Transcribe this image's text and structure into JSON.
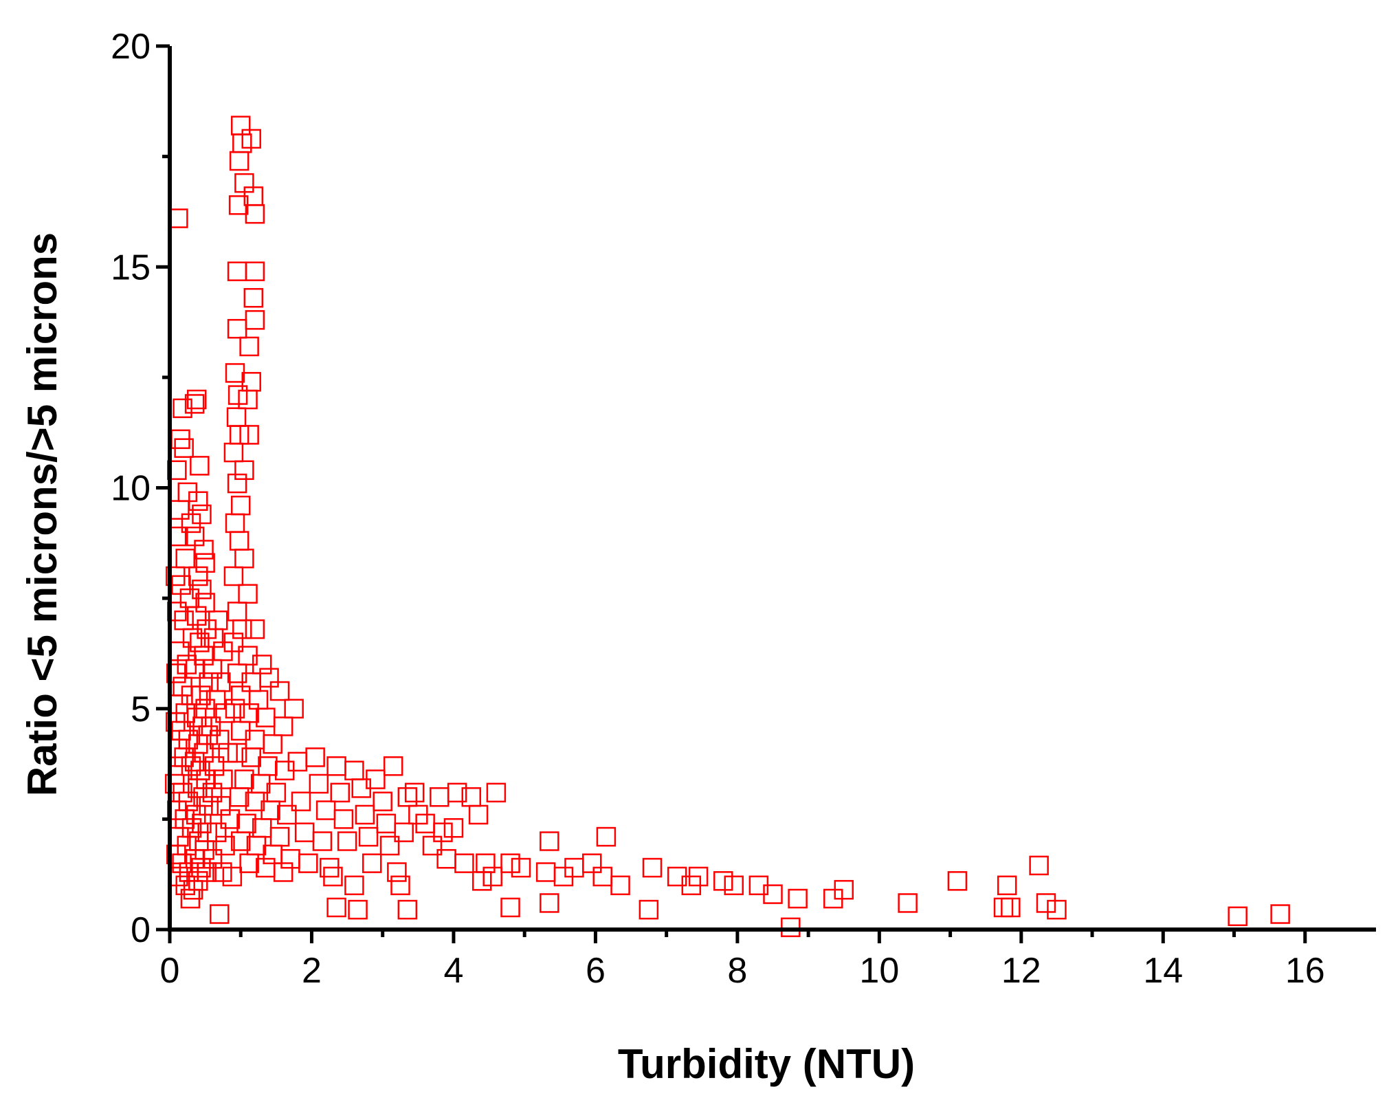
{
  "chart_data": {
    "type": "scatter",
    "xlabel": "Turbidity (NTU)",
    "ylabel": "Ratio <5 microns/>5 microns",
    "xlim": [
      0,
      17
    ],
    "ylim": [
      0,
      20
    ],
    "xticks": [
      0,
      2,
      4,
      6,
      8,
      10,
      12,
      14,
      16
    ],
    "yticks": [
      0,
      5,
      10,
      15,
      20
    ],
    "xtick_labels": [
      "0",
      "2",
      "4",
      "6",
      "8",
      "10",
      "12",
      "14",
      "16"
    ],
    "ytick_labels": [
      "0",
      "5",
      "10",
      "15",
      "20"
    ],
    "grid": false,
    "marker": "open-square",
    "marker_color": "#ff0000",
    "series": [
      {
        "points": [
          [
            0.12,
            16.1
          ],
          [
            0.18,
            11.8
          ],
          [
            0.15,
            11.1
          ],
          [
            0.2,
            10.9
          ],
          [
            0.1,
            10.4
          ],
          [
            0.14,
            9.5
          ],
          [
            0.25,
            9.9
          ],
          [
            0.3,
            9.2
          ],
          [
            0.12,
            8.9
          ],
          [
            0.22,
            8.4
          ],
          [
            0.08,
            8.0
          ],
          [
            0.16,
            7.8
          ],
          [
            0.28,
            7.5
          ],
          [
            0.1,
            7.2
          ],
          [
            0.2,
            7.0
          ],
          [
            0.32,
            6.6
          ],
          [
            0.14,
            6.3
          ],
          [
            0.24,
            6.0
          ],
          [
            0.09,
            5.8
          ],
          [
            0.18,
            5.5
          ],
          [
            0.3,
            5.3
          ],
          [
            0.12,
            5.1
          ],
          [
            0.22,
            4.9
          ],
          [
            0.08,
            4.7
          ],
          [
            0.16,
            4.5
          ],
          [
            0.26,
            4.3
          ],
          [
            0.11,
            4.1
          ],
          [
            0.2,
            3.9
          ],
          [
            0.3,
            3.7
          ],
          [
            0.14,
            3.5
          ],
          [
            0.07,
            3.3
          ],
          [
            0.18,
            3.1
          ],
          [
            0.26,
            2.9
          ],
          [
            0.1,
            2.7
          ],
          [
            0.21,
            2.5
          ],
          [
            0.31,
            2.3
          ],
          [
            0.13,
            2.1
          ],
          [
            0.24,
            1.9
          ],
          [
            0.09,
            1.7
          ],
          [
            0.17,
            1.5
          ],
          [
            0.27,
            1.3
          ],
          [
            0.12,
            1.2
          ],
          [
            0.22,
            1.0
          ],
          [
            0.33,
            0.9
          ],
          [
            0.29,
            0.7
          ],
          [
            0.35,
            11.9
          ],
          [
            0.38,
            12.0
          ],
          [
            0.42,
            10.5
          ],
          [
            0.4,
            9.7
          ],
          [
            0.45,
            9.4
          ],
          [
            0.35,
            8.9
          ],
          [
            0.48,
            8.6
          ],
          [
            0.5,
            8.3
          ],
          [
            0.4,
            8.0
          ],
          [
            0.45,
            7.7
          ],
          [
            0.5,
            7.4
          ],
          [
            0.38,
            7.1
          ],
          [
            0.52,
            6.8
          ],
          [
            0.42,
            6.5
          ],
          [
            0.48,
            6.2
          ],
          [
            0.36,
            5.9
          ],
          [
            0.55,
            5.6
          ],
          [
            0.44,
            5.3
          ],
          [
            0.5,
            5.0
          ],
          [
            0.38,
            4.8
          ],
          [
            0.46,
            4.6
          ],
          [
            0.54,
            4.4
          ],
          [
            0.4,
            4.2
          ],
          [
            0.48,
            4.0
          ],
          [
            0.35,
            3.8
          ],
          [
            0.43,
            3.6
          ],
          [
            0.51,
            3.4
          ],
          [
            0.39,
            3.2
          ],
          [
            0.47,
            3.0
          ],
          [
            0.55,
            2.8
          ],
          [
            0.37,
            2.6
          ],
          [
            0.45,
            2.4
          ],
          [
            0.53,
            2.2
          ],
          [
            0.41,
            2.0
          ],
          [
            0.49,
            1.8
          ],
          [
            0.36,
            1.6
          ],
          [
            0.44,
            1.4
          ],
          [
            0.52,
            1.3
          ],
          [
            0.4,
            1.1
          ],
          [
            0.7,
            0.35
          ],
          [
            0.68,
            7.0
          ],
          [
            0.62,
            6.6
          ],
          [
            0.75,
            6.3
          ],
          [
            0.6,
            5.9
          ],
          [
            0.72,
            5.6
          ],
          [
            0.65,
            5.2
          ],
          [
            0.78,
            4.9
          ],
          [
            0.58,
            4.6
          ],
          [
            0.7,
            4.3
          ],
          [
            0.82,
            4.0
          ],
          [
            0.63,
            3.7
          ],
          [
            0.75,
            3.4
          ],
          [
            0.6,
            3.1
          ],
          [
            0.72,
            2.8
          ],
          [
            0.85,
            2.5
          ],
          [
            0.66,
            2.2
          ],
          [
            0.78,
            1.9
          ],
          [
            0.6,
            1.6
          ],
          [
            0.74,
            1.3
          ],
          [
            0.88,
            1.2
          ],
          [
            1.0,
            18.2
          ],
          [
            1.02,
            17.8
          ],
          [
            0.98,
            17.4
          ],
          [
            1.05,
            16.9
          ],
          [
            1.15,
            17.9
          ],
          [
            1.18,
            16.6
          ],
          [
            1.2,
            16.2
          ],
          [
            0.97,
            16.4
          ],
          [
            0.95,
            14.9
          ],
          [
            1.2,
            14.9
          ],
          [
            1.18,
            14.3
          ],
          [
            1.2,
            13.8
          ],
          [
            0.95,
            13.6
          ],
          [
            1.12,
            13.2
          ],
          [
            1.15,
            12.4
          ],
          [
            0.92,
            12.6
          ],
          [
            0.96,
            12.1
          ],
          [
            1.1,
            12.0
          ],
          [
            0.94,
            11.6
          ],
          [
            0.98,
            11.2
          ],
          [
            1.12,
            11.2
          ],
          [
            0.9,
            10.8
          ],
          [
            1.05,
            10.4
          ],
          [
            0.95,
            10.1
          ],
          [
            1.0,
            9.6
          ],
          [
            0.92,
            9.2
          ],
          [
            0.98,
            8.8
          ],
          [
            1.05,
            8.4
          ],
          [
            0.9,
            8.0
          ],
          [
            1.1,
            7.6
          ],
          [
            0.95,
            7.2
          ],
          [
            1.02,
            6.8
          ],
          [
            1.2,
            6.8
          ],
          [
            0.9,
            6.5
          ],
          [
            1.1,
            6.2
          ],
          [
            1.3,
            6.0
          ],
          [
            0.95,
            5.8
          ],
          [
            1.15,
            5.6
          ],
          [
            1.4,
            5.7
          ],
          [
            1.0,
            5.3
          ],
          [
            1.25,
            5.2
          ],
          [
            1.55,
            5.4
          ],
          [
            0.92,
            5.0
          ],
          [
            1.12,
            4.9
          ],
          [
            1.35,
            4.8
          ],
          [
            1.6,
            4.6
          ],
          [
            1.0,
            4.5
          ],
          [
            1.2,
            4.3
          ],
          [
            1.45,
            4.2
          ],
          [
            0.95,
            4.0
          ],
          [
            1.15,
            3.9
          ],
          [
            1.38,
            3.7
          ],
          [
            1.62,
            3.6
          ],
          [
            1.05,
            3.4
          ],
          [
            1.28,
            3.3
          ],
          [
            1.5,
            3.1
          ],
          [
            0.98,
            3.0
          ],
          [
            1.2,
            2.9
          ],
          [
            1.42,
            2.7
          ],
          [
            1.65,
            2.6
          ],
          [
            1.08,
            2.4
          ],
          [
            1.3,
            2.3
          ],
          [
            1.55,
            2.1
          ],
          [
            1.0,
            2.0
          ],
          [
            1.22,
            1.9
          ],
          [
            1.45,
            1.7
          ],
          [
            1.7,
            1.6
          ],
          [
            1.12,
            1.5
          ],
          [
            1.35,
            1.4
          ],
          [
            1.6,
            1.3
          ],
          [
            1.75,
            5.0
          ],
          [
            1.8,
            3.8
          ],
          [
            1.85,
            2.9
          ],
          [
            1.9,
            2.2
          ],
          [
            1.95,
            1.5
          ],
          [
            2.05,
            3.9
          ],
          [
            2.1,
            3.3
          ],
          [
            2.2,
            2.7
          ],
          [
            2.15,
            2.0
          ],
          [
            2.25,
            1.4
          ],
          [
            2.35,
            3.7
          ],
          [
            2.4,
            3.1
          ],
          [
            2.45,
            2.5
          ],
          [
            2.5,
            2.0
          ],
          [
            2.3,
            1.2
          ],
          [
            2.6,
            3.6
          ],
          [
            2.7,
            3.2
          ],
          [
            2.75,
            2.6
          ],
          [
            2.8,
            2.1
          ],
          [
            2.85,
            1.5
          ],
          [
            2.6,
            1.0
          ],
          [
            2.9,
            3.4
          ],
          [
            3.0,
            2.9
          ],
          [
            3.05,
            2.4
          ],
          [
            3.1,
            1.9
          ],
          [
            3.15,
            3.7
          ],
          [
            3.2,
            1.3
          ],
          [
            3.3,
            2.2
          ],
          [
            3.35,
            3.0
          ],
          [
            3.25,
            1.0
          ],
          [
            2.35,
            0.5
          ],
          [
            2.65,
            0.45
          ],
          [
            3.35,
            0.45
          ],
          [
            3.45,
            3.1
          ],
          [
            3.5,
            2.6
          ],
          [
            3.6,
            2.4
          ],
          [
            3.7,
            1.9
          ],
          [
            3.8,
            3.0
          ],
          [
            3.85,
            2.2
          ],
          [
            3.9,
            1.6
          ],
          [
            4.0,
            2.3
          ],
          [
            4.05,
            3.1
          ],
          [
            4.15,
            1.5
          ],
          [
            4.25,
            3.0
          ],
          [
            4.35,
            2.6
          ],
          [
            4.4,
            1.1
          ],
          [
            4.45,
            1.5
          ],
          [
            4.55,
            1.2
          ],
          [
            4.6,
            3.1
          ],
          [
            4.8,
            1.5
          ],
          [
            4.8,
            0.5
          ],
          [
            4.95,
            1.4
          ],
          [
            5.3,
            1.3
          ],
          [
            5.35,
            2.0
          ],
          [
            5.35,
            0.6
          ],
          [
            5.55,
            1.2
          ],
          [
            5.7,
            1.4
          ],
          [
            5.95,
            1.5
          ],
          [
            6.1,
            1.2
          ],
          [
            6.15,
            2.1
          ],
          [
            6.35,
            1.0
          ],
          [
            6.75,
            0.45
          ],
          [
            6.8,
            1.4
          ],
          [
            7.15,
            1.2
          ],
          [
            7.35,
            1.0
          ],
          [
            7.45,
            1.2
          ],
          [
            7.8,
            1.1
          ],
          [
            7.95,
            1.0
          ],
          [
            8.3,
            1.0
          ],
          [
            8.5,
            0.8
          ],
          [
            8.75,
            0.05
          ],
          [
            8.85,
            0.7
          ],
          [
            9.35,
            0.7
          ],
          [
            9.5,
            0.9
          ],
          [
            10.4,
            0.6
          ],
          [
            11.1,
            1.1
          ],
          [
            11.75,
            0.5
          ],
          [
            11.8,
            1.0
          ],
          [
            11.85,
            0.5
          ],
          [
            12.25,
            1.45
          ],
          [
            12.35,
            0.6
          ],
          [
            12.5,
            0.45
          ],
          [
            15.05,
            0.3
          ],
          [
            15.65,
            0.35
          ]
        ]
      }
    ]
  }
}
